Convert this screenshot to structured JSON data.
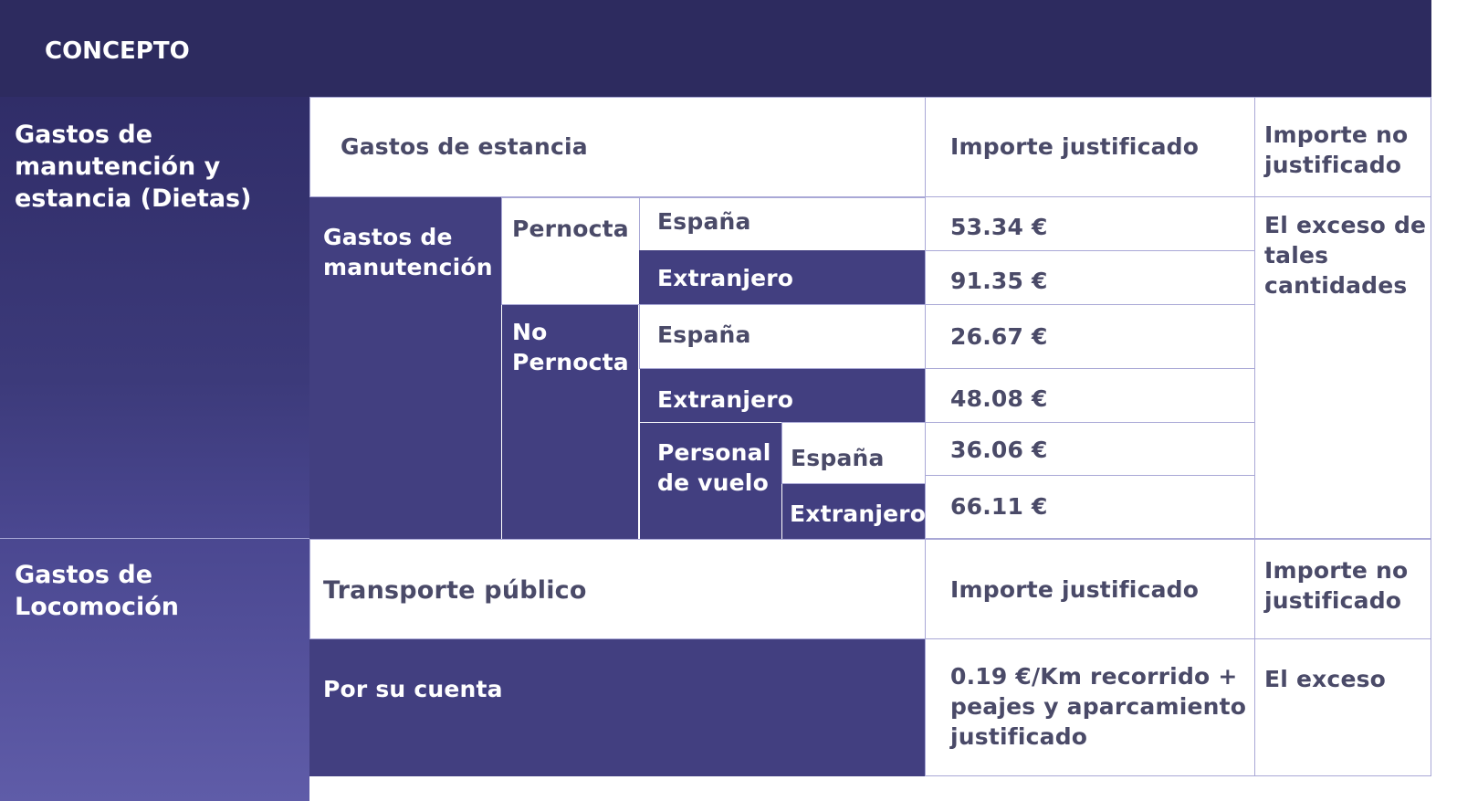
{
  "header": {
    "concepto": "CONCEPTO"
  },
  "dietas": {
    "section_label": "Gastos de manutención y estancia (Dietas)",
    "gastos_estancia": "Gastos de estancia",
    "importe_justificado": "Importe justificado",
    "importe_no_justificado": "Importe no justificado",
    "gastos_manutencion": "Gastos de manutención",
    "pernocta": "Pernocta",
    "no_pernocta": "No Pernocta",
    "personal_vuelo": "Personal de vuelo",
    "exceso": "El exceso de tales cantidades",
    "rows": [
      {
        "place": "España",
        "amount": "53.34 €"
      },
      {
        "place": "Extranjero",
        "amount": "91.35 €"
      },
      {
        "place": "España",
        "amount": "26.67 €"
      },
      {
        "place": "Extranjero",
        "amount": "48.08 €"
      },
      {
        "place": "España",
        "amount": "36.06 €"
      },
      {
        "place": "Extranjero",
        "amount": "66.11 €"
      }
    ]
  },
  "locomocion": {
    "section_label": "Gastos de Locomoción",
    "transporte_publico": "Transporte público",
    "importe_justificado": "Importe justificado",
    "importe_no_justificado": "Importe no justificado",
    "por_su_cuenta": "Por su cuenta",
    "tarifa": "0.19 €/Km recorrido + peajes y aparcamiento justificado",
    "exceso": "El exceso"
  },
  "colors": {
    "header_bg": "#2d2b5f",
    "dark_cell": "#423f80",
    "sidebar_top": "#302d68",
    "sidebar_bottom": "#5f5ca8",
    "light_text": "#4a4a68",
    "border": "#a9a8d6"
  }
}
